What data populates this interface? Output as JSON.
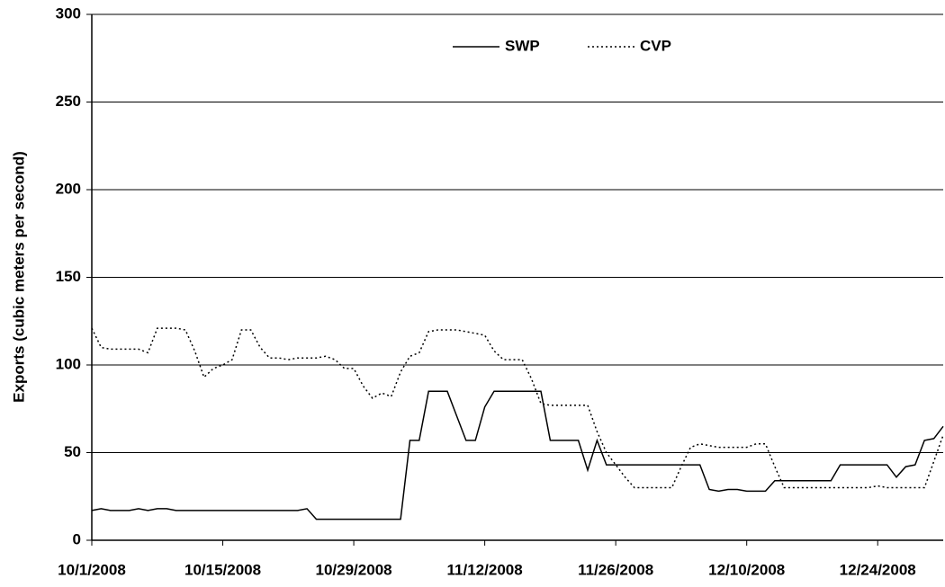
{
  "chart_data": {
    "type": "line",
    "y_label": "Exports (cubic meters per second)",
    "x": [
      "10/1/2008",
      "10/2/2008",
      "10/3/2008",
      "10/4/2008",
      "10/5/2008",
      "10/6/2008",
      "10/7/2008",
      "10/8/2008",
      "10/9/2008",
      "10/10/2008",
      "10/11/2008",
      "10/12/2008",
      "10/13/2008",
      "10/14/2008",
      "10/15/2008",
      "10/16/2008",
      "10/17/2008",
      "10/18/2008",
      "10/19/2008",
      "10/20/2008",
      "10/21/2008",
      "10/22/2008",
      "10/23/2008",
      "10/24/2008",
      "10/25/2008",
      "10/26/2008",
      "10/27/2008",
      "10/28/2008",
      "10/29/2008",
      "10/30/2008",
      "10/31/2008",
      "11/1/2008",
      "11/2/2008",
      "11/3/2008",
      "11/4/2008",
      "11/5/2008",
      "11/6/2008",
      "11/7/2008",
      "11/8/2008",
      "11/9/2008",
      "11/10/2008",
      "11/11/2008",
      "11/12/2008",
      "11/13/2008",
      "11/14/2008",
      "11/15/2008",
      "11/16/2008",
      "11/17/2008",
      "11/18/2008",
      "11/19/2008",
      "11/20/2008",
      "11/21/2008",
      "11/22/2008",
      "11/23/2008",
      "11/24/2008",
      "11/25/2008",
      "11/26/2008",
      "11/27/2008",
      "11/28/2008",
      "11/29/2008",
      "11/30/2008",
      "12/1/2008",
      "12/2/2008",
      "12/3/2008",
      "12/4/2008",
      "12/5/2008",
      "12/6/2008",
      "12/7/2008",
      "12/8/2008",
      "12/9/2008",
      "12/10/2008",
      "12/11/2008",
      "12/12/2008",
      "12/13/2008",
      "12/14/2008",
      "12/15/2008",
      "12/16/2008",
      "12/17/2008",
      "12/18/2008",
      "12/19/2008",
      "12/20/2008",
      "12/21/2008",
      "12/22/2008",
      "12/23/2008",
      "12/24/2008",
      "12/25/2008",
      "12/26/2008",
      "12/27/2008",
      "12/28/2008",
      "12/29/2008",
      "12/30/2008",
      "12/31/2008"
    ],
    "series": [
      {
        "name": "SWP",
        "color": "#000000",
        "dash": "solid",
        "values": [
          17,
          18,
          17,
          17,
          17,
          18,
          17,
          18,
          18,
          17,
          17,
          17,
          17,
          17,
          17,
          17,
          17,
          17,
          17,
          17,
          17,
          17,
          17,
          18,
          12,
          12,
          12,
          12,
          12,
          12,
          12,
          12,
          12,
          12,
          57,
          57,
          85,
          85,
          85,
          71,
          57,
          57,
          76,
          85,
          85,
          85,
          85,
          85,
          85,
          57,
          57,
          57,
          57,
          40,
          57,
          43,
          43,
          43,
          43,
          43,
          43,
          43,
          43,
          43,
          43,
          43,
          29,
          28,
          29,
          29,
          28,
          28,
          28,
          34,
          34,
          34,
          34,
          34,
          34,
          34,
          43,
          43,
          43,
          43,
          43,
          43,
          36,
          42,
          43,
          57,
          58,
          65
        ]
      },
      {
        "name": "CVP",
        "color": "#000000",
        "dash": "dotted",
        "values": [
          121,
          110,
          109,
          109,
          109,
          109,
          107,
          121,
          121,
          121,
          120,
          108,
          93,
          98,
          100,
          103,
          120,
          120,
          110,
          104,
          104,
          103,
          104,
          104,
          104,
          105,
          103,
          98,
          98,
          88,
          81,
          84,
          82,
          96,
          105,
          107,
          119,
          120,
          120,
          120,
          119,
          118,
          117,
          108,
          103,
          103,
          103,
          92,
          78,
          77,
          77,
          77,
          77,
          77,
          62,
          50,
          43,
          36,
          30,
          30,
          30,
          30,
          30,
          42,
          53,
          55,
          54,
          53,
          53,
          53,
          53,
          55,
          55,
          42,
          30,
          30,
          30,
          30,
          30,
          30,
          30,
          30,
          30,
          30,
          31,
          30,
          30,
          30,
          30,
          30,
          45,
          60
        ]
      }
    ],
    "xlim": [
      "10/1/2008",
      "12/31/2008"
    ],
    "xticks": [
      "10/1/2008",
      "10/15/2008",
      "10/29/2008",
      "11/12/2008",
      "11/26/2008",
      "12/10/2008",
      "12/24/2008"
    ],
    "ylim": [
      0,
      300
    ],
    "yticks": [
      0,
      50,
      100,
      150,
      200,
      250,
      300
    ],
    "grid": true,
    "legend": "top"
  }
}
